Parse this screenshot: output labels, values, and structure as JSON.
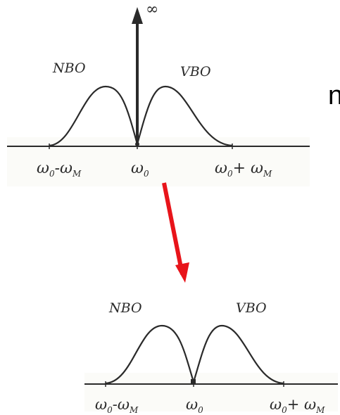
{
  "side_text": "n",
  "upper": {
    "infinity": "∞",
    "nbo": "NBO",
    "vbo": "VBO",
    "tick_left": "ω",
    "tick_left_sub": "0",
    "tick_left_mid": "-ω",
    "tick_left_sub2": "M",
    "tick_center": "ω",
    "tick_center_sub": "0",
    "tick_right": "ω",
    "tick_right_sub": "0",
    "tick_right_mid": "+ ω",
    "tick_right_sub2": "M"
  },
  "lower": {
    "nbo": "NBO",
    "vbo": "VBO",
    "tick_left": "ω",
    "tick_left_sub": "0",
    "tick_left_mid": "-ω",
    "tick_left_sub2": "M",
    "tick_center": "ω",
    "tick_center_sub": "0",
    "tick_right": "ω",
    "tick_right_sub": "0",
    "tick_right_mid": "+ ω",
    "tick_right_sub2": "M"
  },
  "colors": {
    "ink": "#2a2a2a",
    "arrow": "#e8141a"
  }
}
